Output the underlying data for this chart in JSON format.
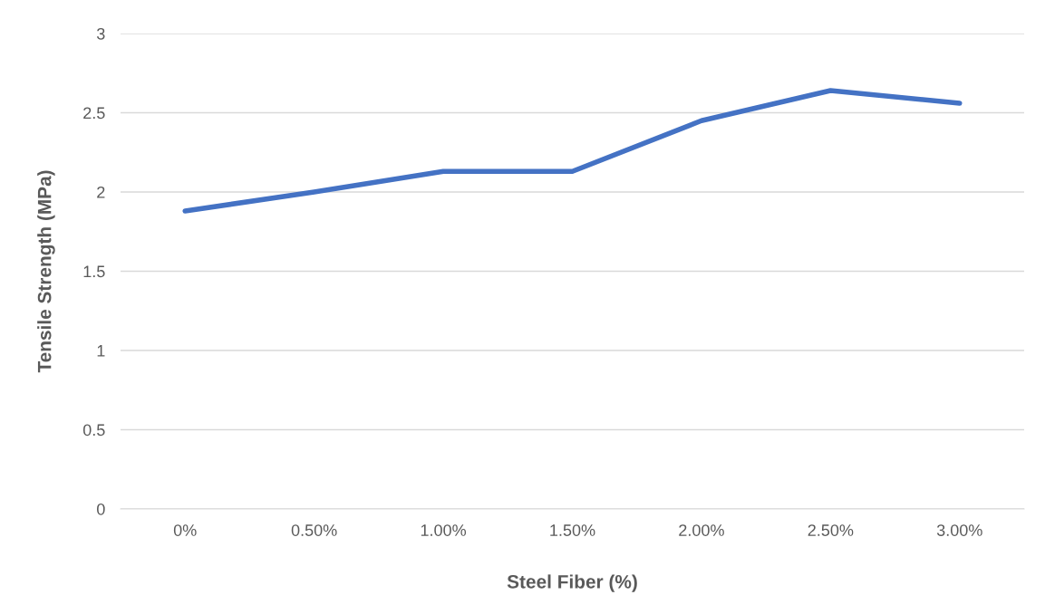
{
  "chart_data": {
    "type": "line",
    "xlabel": "Steel Fiber (%)",
    "ylabel": "Tensile Strength (MPa)",
    "categories": [
      "0%",
      "0.50%",
      "1.00%",
      "1.50%",
      "2.00%",
      "2.50%",
      "3.00%"
    ],
    "series": [
      {
        "color": "#4472c4",
        "values": [
          1.88,
          2.0,
          2.13,
          2.13,
          2.45,
          2.64,
          2.56
        ]
      }
    ],
    "ylim": [
      0,
      3
    ],
    "yticks": [
      0,
      0.5,
      1,
      1.5,
      2,
      2.5,
      3
    ],
    "grid": "y",
    "legend": false,
    "marker": "none",
    "line_style": "solid"
  }
}
